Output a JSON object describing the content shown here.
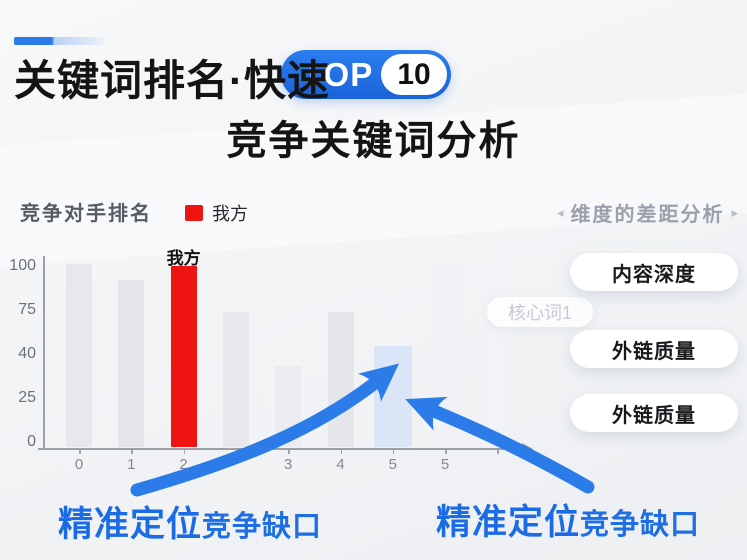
{
  "colors": {
    "brand_blue": "#2176e8",
    "accent_red": "#ee1411",
    "arrow_blue": "#2b7ce9",
    "callout_blue": "#1b6be4",
    "bar_gray": "#e6e8eb",
    "bar_highlight_blue": "#dbe5f8"
  },
  "header": {
    "title": "关键词排名·快速",
    "badge_top": "TOP",
    "badge_number": "10",
    "subtitle": "竞争关键词分析"
  },
  "chart": {
    "title": "竞争对手排名",
    "legend_label": "我方"
  },
  "chart_data": {
    "type": "bar",
    "title": "竞争对手排名",
    "categories": [
      "0",
      "1",
      "2",
      "",
      "3",
      "4",
      "5",
      "5",
      ""
    ],
    "values": [
      100,
      91,
      99,
      74,
      44,
      74,
      55,
      100,
      98
    ],
    "colors": [
      "#e6e8eb",
      "#e3e5e8",
      "#ee1411",
      "#e6e8eb",
      "#eaecef",
      "#e4e6ea",
      "#dbe5f8",
      "#eff1f4",
      "#f1f3f6"
    ],
    "bar_label": {
      "index": 2,
      "text": "我方"
    },
    "highlight_index": 2,
    "gap_index": 6,
    "y_ticks": [
      "100",
      "75",
      "40",
      "25",
      "0"
    ],
    "ylim": [
      0,
      100
    ],
    "legend": {
      "label": "我方",
      "color": "#ee1411",
      "position": "top-left"
    },
    "grid": false
  },
  "side_panel": {
    "left_arrow": "◂",
    "right_arrow": "▸",
    "heading": "维度的差距分析",
    "buttons": [
      "内容深度",
      "外链质量",
      "外链质量"
    ],
    "faded_tag": "核心词1"
  },
  "callouts": {
    "left": {
      "strong": "精准定位",
      "rest": "竞争缺口"
    },
    "right": {
      "strong": "精准定位",
      "rest": "竞争缺口"
    }
  }
}
